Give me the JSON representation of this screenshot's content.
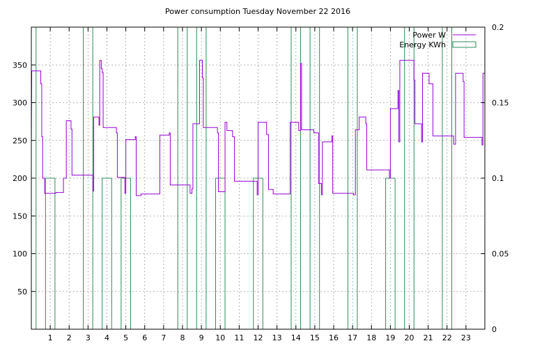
{
  "chart_data": {
    "type": "line",
    "title": "Power consumption Tuesday November 22 2016",
    "xlabel": "",
    "ylabel": "",
    "x_range": [
      0,
      24
    ],
    "x_ticks": [
      1,
      2,
      3,
      4,
      5,
      6,
      7,
      8,
      9,
      10,
      11,
      12,
      13,
      14,
      15,
      16,
      17,
      18,
      19,
      20,
      21,
      22,
      23
    ],
    "ylim_left": [
      0,
      400
    ],
    "y_ticks_left": [
      50,
      100,
      150,
      200,
      250,
      300,
      350
    ],
    "ylim_right": [
      0,
      0.2
    ],
    "y_ticks_right": [
      "0",
      "0.05",
      "0.1",
      "0.15",
      "0.2"
    ],
    "grid": true,
    "legend_position": "top-right",
    "series": [
      {
        "name": "Power W",
        "axis": "left",
        "color": "#9400d3",
        "style": "step",
        "points": [
          [
            0.0,
            250
          ],
          [
            0.02,
            342
          ],
          [
            0.5,
            342
          ],
          [
            0.5,
            325
          ],
          [
            0.55,
            325
          ],
          [
            0.55,
            255
          ],
          [
            0.6,
            255
          ],
          [
            0.6,
            200
          ],
          [
            0.7,
            200
          ],
          [
            0.7,
            180
          ],
          [
            1.3,
            180
          ],
          [
            1.3,
            181
          ],
          [
            1.7,
            181
          ],
          [
            1.7,
            200
          ],
          [
            1.85,
            200
          ],
          [
            1.85,
            276
          ],
          [
            2.1,
            276
          ],
          [
            2.1,
            265
          ],
          [
            2.15,
            265
          ],
          [
            2.15,
            204
          ],
          [
            3.25,
            204
          ],
          [
            3.25,
            183
          ],
          [
            3.3,
            183
          ],
          [
            3.3,
            281
          ],
          [
            3.58,
            281
          ],
          [
            3.58,
            270
          ],
          [
            3.62,
            270
          ],
          [
            3.62,
            356
          ],
          [
            3.7,
            356
          ],
          [
            3.7,
            345
          ],
          [
            3.75,
            345
          ],
          [
            3.75,
            340
          ],
          [
            3.8,
            340
          ],
          [
            3.8,
            267
          ],
          [
            4.5,
            267
          ],
          [
            4.5,
            260
          ],
          [
            4.55,
            260
          ],
          [
            4.55,
            201
          ],
          [
            4.95,
            201
          ],
          [
            4.95,
            180
          ],
          [
            5.0,
            180
          ],
          [
            5.0,
            251
          ],
          [
            5.5,
            251
          ],
          [
            5.5,
            255
          ],
          [
            5.55,
            255
          ],
          [
            5.55,
            177
          ],
          [
            5.8,
            177
          ],
          [
            5.8,
            179
          ],
          [
            6.8,
            179
          ],
          [
            6.8,
            257
          ],
          [
            7.3,
            257
          ],
          [
            7.3,
            260
          ],
          [
            7.35,
            260
          ],
          [
            7.35,
            191
          ],
          [
            8.4,
            191
          ],
          [
            8.4,
            180
          ],
          [
            8.5,
            180
          ],
          [
            8.5,
            186
          ],
          [
            8.55,
            186
          ],
          [
            8.55,
            272
          ],
          [
            8.9,
            272
          ],
          [
            8.9,
            356
          ],
          [
            9.05,
            356
          ],
          [
            9.05,
            333
          ],
          [
            9.1,
            333
          ],
          [
            9.1,
            267
          ],
          [
            9.85,
            267
          ],
          [
            9.85,
            260
          ],
          [
            9.9,
            260
          ],
          [
            9.9,
            182
          ],
          [
            10.25,
            182
          ],
          [
            10.25,
            274
          ],
          [
            10.35,
            274
          ],
          [
            10.35,
            263
          ],
          [
            10.65,
            263
          ],
          [
            10.65,
            255
          ],
          [
            10.75,
            255
          ],
          [
            10.75,
            196
          ],
          [
            11.95,
            196
          ],
          [
            11.95,
            178
          ],
          [
            12.0,
            178
          ],
          [
            12.0,
            274
          ],
          [
            12.45,
            274
          ],
          [
            12.45,
            258
          ],
          [
            12.55,
            258
          ],
          [
            12.55,
            185
          ],
          [
            12.8,
            185
          ],
          [
            12.8,
            179
          ],
          [
            13.7,
            179
          ],
          [
            13.7,
            274
          ],
          [
            14.15,
            274
          ],
          [
            14.15,
            263
          ],
          [
            14.25,
            263
          ],
          [
            14.25,
            352
          ],
          [
            14.3,
            352
          ],
          [
            14.3,
            264
          ],
          [
            14.95,
            264
          ],
          [
            14.95,
            260
          ],
          [
            15.2,
            260
          ],
          [
            15.2,
            193
          ],
          [
            15.35,
            193
          ],
          [
            15.35,
            178
          ],
          [
            15.4,
            178
          ],
          [
            15.4,
            248
          ],
          [
            15.9,
            248
          ],
          [
            15.9,
            256
          ],
          [
            15.95,
            256
          ],
          [
            15.95,
            180
          ],
          [
            17.05,
            180
          ],
          [
            17.05,
            178
          ],
          [
            17.15,
            178
          ],
          [
            17.15,
            264
          ],
          [
            17.35,
            264
          ],
          [
            17.35,
            281
          ],
          [
            17.7,
            281
          ],
          [
            17.7,
            272
          ],
          [
            17.75,
            272
          ],
          [
            17.75,
            211
          ],
          [
            18.95,
            211
          ],
          [
            18.95,
            200
          ],
          [
            19.0,
            200
          ],
          [
            19.0,
            292
          ],
          [
            19.4,
            292
          ],
          [
            19.4,
            316
          ],
          [
            19.45,
            316
          ],
          [
            19.45,
            248
          ],
          [
            19.5,
            248
          ],
          [
            19.5,
            356
          ],
          [
            20.25,
            356
          ],
          [
            20.25,
            330
          ],
          [
            20.3,
            330
          ],
          [
            20.3,
            272
          ],
          [
            20.65,
            272
          ],
          [
            20.65,
            248
          ],
          [
            20.7,
            248
          ],
          [
            20.7,
            339
          ],
          [
            21.05,
            339
          ],
          [
            21.05,
            325
          ],
          [
            21.25,
            325
          ],
          [
            21.25,
            256
          ],
          [
            22.35,
            256
          ],
          [
            22.35,
            245
          ],
          [
            22.45,
            245
          ],
          [
            22.45,
            339
          ],
          [
            22.85,
            339
          ],
          [
            22.85,
            328
          ],
          [
            22.9,
            328
          ],
          [
            22.9,
            254
          ],
          [
            23.85,
            254
          ],
          [
            23.85,
            244
          ],
          [
            23.9,
            244
          ],
          [
            23.9,
            339
          ],
          [
            24.0,
            339
          ]
        ]
      },
      {
        "name": "Energy KWh",
        "axis": "right",
        "color": "#2e8b57",
        "style": "impulse_intervals",
        "intervals": [
          [
            0.25,
            0.25,
            0.2
          ],
          [
            0.75,
            1.25,
            0.1
          ],
          [
            2.75,
            2.75,
            0.2
          ],
          [
            3.25,
            3.25,
            0.2
          ],
          [
            3.75,
            4.25,
            0.1
          ],
          [
            4.75,
            5.25,
            0.1
          ],
          [
            7.75,
            7.75,
            0.2
          ],
          [
            8.25,
            8.25,
            0.2
          ],
          [
            8.75,
            8.75,
            0.2
          ],
          [
            9.25,
            9.25,
            0.2
          ],
          [
            9.75,
            10.25,
            0.1
          ],
          [
            11.75,
            12.25,
            0.1
          ],
          [
            13.75,
            13.75,
            0.2
          ],
          [
            14.25,
            14.25,
            0.2
          ],
          [
            14.75,
            14.75,
            0.2
          ],
          [
            15.25,
            15.25,
            0.2
          ],
          [
            16.75,
            16.75,
            0.2
          ],
          [
            17.25,
            17.25,
            0.2
          ],
          [
            18.75,
            19.25,
            0.1
          ],
          [
            19.75,
            19.75,
            0.2
          ],
          [
            20.25,
            20.25,
            0.2
          ],
          [
            21.75,
            21.75,
            0.2
          ],
          [
            22.25,
            22.25,
            0.2
          ]
        ]
      }
    ]
  }
}
